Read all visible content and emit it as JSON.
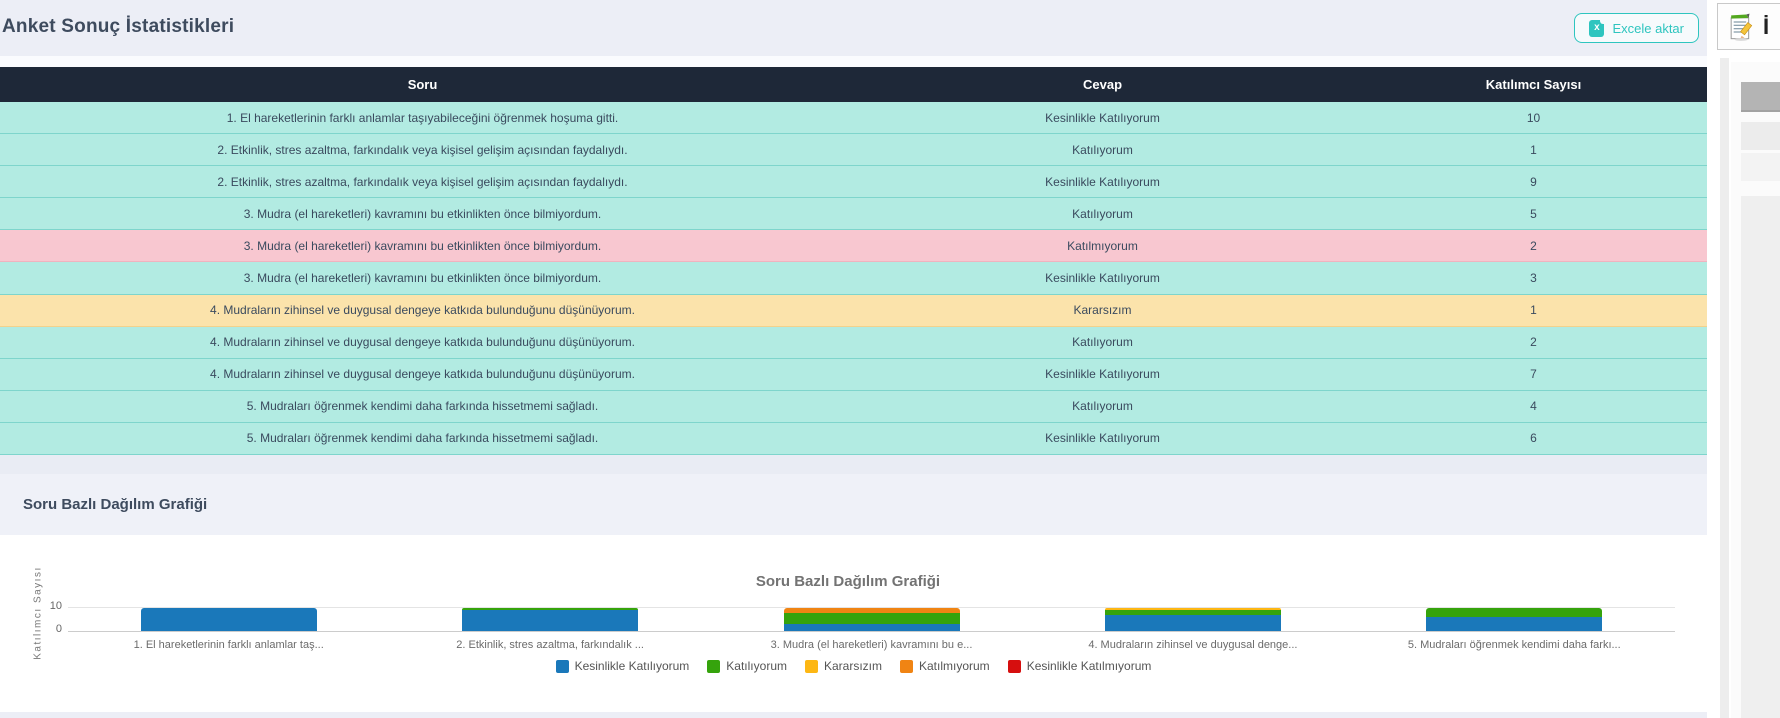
{
  "header": {
    "title": "Anket Sonuç İstatistikleri",
    "export_button_label": "Excele aktar",
    "export_icon_glyph": "x"
  },
  "table": {
    "columns": [
      "Soru",
      "Cevap",
      "Katılımcı Sayısı"
    ],
    "rows": [
      {
        "soru": "1. El hareketlerinin farklı anlamlar taşıyabileceğini öğrenmek hoşuma gitti.",
        "cevap": "Kesinlikle Katılıyorum",
        "katilimci": "10",
        "highlight": "teal"
      },
      {
        "soru": "2. Etkinlik, stres azaltma, farkındalık veya kişisel gelişim açısından faydalıydı.",
        "cevap": "Katılıyorum",
        "katilimci": "1",
        "highlight": "teal"
      },
      {
        "soru": "2. Etkinlik, stres azaltma, farkındalık veya kişisel gelişim açısından faydalıydı.",
        "cevap": "Kesinlikle Katılıyorum",
        "katilimci": "9",
        "highlight": "teal"
      },
      {
        "soru": "3. Mudra (el hareketleri) kavramını bu etkinlikten önce bilmiyordum.",
        "cevap": "Katılıyorum",
        "katilimci": "5",
        "highlight": "teal"
      },
      {
        "soru": "3. Mudra (el hareketleri) kavramını bu etkinlikten önce bilmiyordum.",
        "cevap": "Katılmıyorum",
        "katilimci": "2",
        "highlight": "pink"
      },
      {
        "soru": "3. Mudra (el hareketleri) kavramını bu etkinlikten önce bilmiyordum.",
        "cevap": "Kesinlikle Katılıyorum",
        "katilimci": "3",
        "highlight": "teal"
      },
      {
        "soru": "4. Mudraların zihinsel ve duygusal dengeye katkıda bulunduğunu düşünüyorum.",
        "cevap": "Kararsızım",
        "katilimci": "1",
        "highlight": "yellow"
      },
      {
        "soru": "4. Mudraların zihinsel ve duygusal dengeye katkıda bulunduğunu düşünüyorum.",
        "cevap": "Katılıyorum",
        "katilimci": "2",
        "highlight": "teal"
      },
      {
        "soru": "4. Mudraların zihinsel ve duygusal dengeye katkıda bulunduğunu düşünüyorum.",
        "cevap": "Kesinlikle Katılıyorum",
        "katilimci": "7",
        "highlight": "teal"
      },
      {
        "soru": "5. Mudraları öğrenmek kendimi daha farkında hissetmemi sağladı.",
        "cevap": "Katılıyorum",
        "katilimci": "4",
        "highlight": "teal"
      },
      {
        "soru": "5. Mudraları öğrenmek kendimi daha farkında hissetmemi sağladı.",
        "cevap": "Kesinlikle Katılıyorum",
        "katilimci": "6",
        "highlight": "teal"
      }
    ]
  },
  "section": {
    "title": "Soru Bazlı Dağılım Grafiği"
  },
  "chart_data": {
    "type": "bar",
    "stacked": true,
    "title": "Soru Bazlı Dağılım Grafiği",
    "xlabel": "",
    "ylabel": "Katılımcı Sayısı",
    "ylim": [
      0,
      10
    ],
    "yticks": [
      0,
      10
    ],
    "grid": true,
    "legend_position": "bottom",
    "categories": [
      "1. El hareketlerinin farklı anlamlar taş...",
      "2. Etkinlik, stres azaltma, farkındalık ...",
      "3. Mudra (el hareketleri) kavramını bu e...",
      "4. Mudraların zihinsel ve duygusal denge...",
      "5. Mudraları öğrenmek kendimi daha farkı..."
    ],
    "series": [
      {
        "name": "Kesinlikle Katılıyorum",
        "color": "#1a78ba",
        "values": [
          10,
          9,
          3,
          7,
          6
        ]
      },
      {
        "name": "Katılıyorum",
        "color": "#35a30c",
        "values": [
          0,
          1,
          5,
          2,
          4
        ]
      },
      {
        "name": "Kararsızım",
        "color": "#fdb714",
        "values": [
          0,
          0,
          0,
          1,
          0
        ]
      },
      {
        "name": "Katılmıyorum",
        "color": "#f08413",
        "values": [
          0,
          0,
          2,
          0,
          0
        ]
      },
      {
        "name": "Kesinlikle Katılmıyorum",
        "color": "#d60f0f",
        "values": [
          0,
          0,
          0,
          0,
          0
        ]
      }
    ]
  },
  "side_panel": {
    "icon": "document-pencil-icon",
    "partial_label": "İ"
  },
  "colors": {
    "accent": "#2ec5bf",
    "header_bg": "#1e2838",
    "row_teal": "#b2ebe2",
    "row_pink": "#f8c7d0",
    "row_yellow": "#fbe3ab",
    "page_bg": "#eceef6"
  }
}
